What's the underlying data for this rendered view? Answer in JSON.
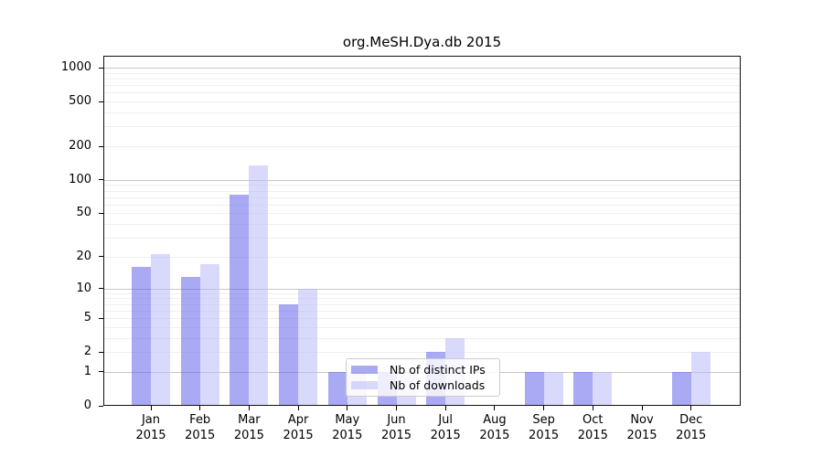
{
  "title": "org.MeSH.Dya.db 2015",
  "colors": {
    "distinct_ips": "rgba(99,99,235,0.55)",
    "downloads": "rgba(186,186,247,0.55)",
    "grid_major": "#c6c6c6",
    "grid_minor": "#efefef",
    "axis": "#121212"
  },
  "legend": {
    "items": [
      {
        "label": "Nb of distinct IPs"
      },
      {
        "label": "Nb of downloads"
      }
    ]
  },
  "chart_data": {
    "type": "bar",
    "title": "org.MeSH.Dya.db 2015",
    "y_scale": "log10(1+x)",
    "y_ticks": [
      0,
      1,
      2,
      5,
      10,
      20,
      50,
      100,
      200,
      500,
      1000
    ],
    "ylim": [
      0,
      1250
    ],
    "grid": "y-both",
    "legend_position": "lower-center-inside",
    "year": "2015",
    "months": [
      "Jan",
      "Feb",
      "Mar",
      "Apr",
      "May",
      "Jun",
      "Jul",
      "Aug",
      "Sep",
      "Oct",
      "Nov",
      "Dec"
    ],
    "series": [
      {
        "name": "Nb of distinct IPs",
        "key": "distinct_ips",
        "values": [
          16,
          13,
          74,
          7,
          1,
          1,
          2,
          0,
          1,
          1,
          0,
          1
        ]
      },
      {
        "name": "Nb of downloads",
        "key": "downloads",
        "values": [
          21,
          17,
          135,
          10,
          1,
          1,
          3,
          0,
          1,
          1,
          0,
          2
        ]
      }
    ]
  }
}
